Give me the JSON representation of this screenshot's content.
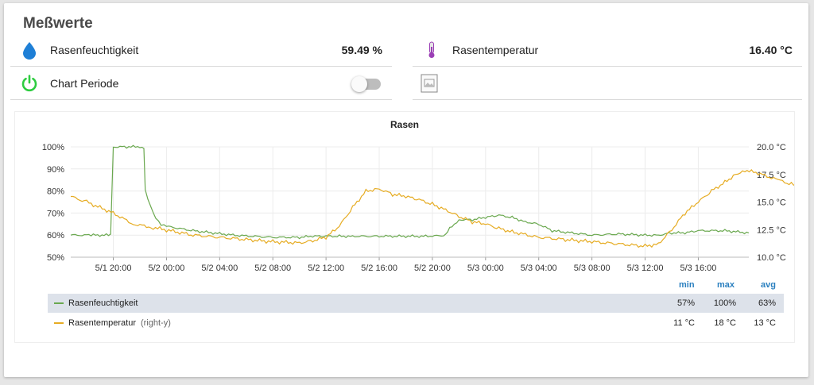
{
  "card": {
    "title": "Meßwerte"
  },
  "sensors": {
    "humidity": {
      "icon": "water-drop-icon",
      "label": "Rasenfeuchtigkeit",
      "value": "59.49 %"
    },
    "temperature": {
      "icon": "thermometer-icon",
      "label": "Rasentemperatur",
      "value": "16.40 °C"
    },
    "chart_period": {
      "icon": "power-icon",
      "label": "Chart Periode",
      "toggle_on": false
    },
    "image": {
      "icon": "image-file-icon"
    }
  },
  "colors": {
    "humidity": "#6aa84f",
    "temperature": "#e6ac23",
    "legend_header": "#2a7fbf",
    "power_icon": "#2ecc40",
    "drop_icon": "#1e7fd6",
    "thermo_icon": "#9b3fb5"
  },
  "chart_data": {
    "type": "line",
    "title": "Rasen",
    "x_ticks": [
      "5/1 20:00",
      "5/2 00:00",
      "5/2 04:00",
      "5/2 08:00",
      "5/2 12:00",
      "5/2 16:00",
      "5/2 20:00",
      "5/3 00:00",
      "5/3 04:00",
      "5/3 08:00",
      "5/3 12:00",
      "5/3 16:00"
    ],
    "x_range_hours": [
      -3.2,
      47.8
    ],
    "left_axis": {
      "ticks": [
        "100%",
        "90%",
        "80%",
        "70%",
        "60%",
        "50%"
      ],
      "range": [
        50,
        100
      ]
    },
    "right_axis": {
      "ticks": [
        "20.0 °C",
        "17.5 °C",
        "15.0 °C",
        "12.5 °C",
        "10.0 °C"
      ],
      "range": [
        10,
        20
      ]
    },
    "series": [
      {
        "name": "Rasenfeuchtigkeit",
        "axis": "left",
        "points": [
          [
            -3.2,
            60
          ],
          [
            -1.5,
            60
          ],
          [
            -0.2,
            60
          ],
          [
            0,
            100
          ],
          [
            1,
            100
          ],
          [
            2,
            100
          ],
          [
            2.3,
            99
          ],
          [
            2.4,
            80
          ],
          [
            2.8,
            73
          ],
          [
            3.2,
            68
          ],
          [
            3.6,
            65
          ],
          [
            4,
            64
          ],
          [
            6,
            62
          ],
          [
            9,
            60
          ],
          [
            12,
            59
          ],
          [
            14,
            59
          ],
          [
            15,
            59.5
          ],
          [
            16,
            59.5
          ],
          [
            17,
            59.5
          ],
          [
            18,
            59.5
          ],
          [
            20,
            59.5
          ],
          [
            23,
            59.5
          ],
          [
            24,
            59.5
          ],
          [
            25,
            60
          ],
          [
            25.3,
            63
          ],
          [
            26,
            67
          ],
          [
            27,
            67
          ],
          [
            28,
            68
          ],
          [
            29,
            69
          ],
          [
            30,
            68
          ],
          [
            31,
            66
          ],
          [
            32,
            65
          ],
          [
            33,
            62
          ],
          [
            36,
            60
          ],
          [
            38,
            60.5
          ],
          [
            40,
            60
          ],
          [
            41,
            60
          ],
          [
            42,
            61
          ],
          [
            43,
            61
          ],
          [
            44,
            62
          ],
          [
            46,
            62
          ],
          [
            47.8,
            61
          ]
        ]
      },
      {
        "name": "Rasentemperatur",
        "axis": "right",
        "points": [
          [
            -3.2,
            15.5
          ],
          [
            -2,
            15
          ],
          [
            0,
            14
          ],
          [
            1.5,
            13
          ],
          [
            3,
            12.7
          ],
          [
            6,
            12
          ],
          [
            9,
            11.7
          ],
          [
            12,
            11.4
          ],
          [
            14,
            11.3
          ],
          [
            15,
            11.5
          ],
          [
            16,
            11.8
          ],
          [
            17,
            12.8
          ],
          [
            18,
            14.5
          ],
          [
            19,
            16
          ],
          [
            20,
            16.2
          ],
          [
            21,
            15.7
          ],
          [
            22,
            15.5
          ],
          [
            23,
            15.2
          ],
          [
            24,
            14.8
          ],
          [
            25,
            14.3
          ],
          [
            26,
            13.7
          ],
          [
            27,
            13.2
          ],
          [
            28,
            13
          ],
          [
            29,
            12.6
          ],
          [
            30,
            12.3
          ],
          [
            32,
            11.8
          ],
          [
            34,
            11.6
          ],
          [
            36,
            11.4
          ],
          [
            38,
            11.2
          ],
          [
            40,
            11
          ],
          [
            41,
            11.2
          ],
          [
            42,
            12.5
          ],
          [
            43,
            14
          ],
          [
            44,
            15
          ],
          [
            45,
            16
          ],
          [
            46,
            16.8
          ],
          [
            46.8,
            17.5
          ],
          [
            47.5,
            17.9
          ],
          [
            48.5,
            17.6
          ],
          [
            50,
            17
          ],
          [
            51,
            16.6
          ],
          [
            52,
            16.4
          ]
        ]
      }
    ],
    "legend": {
      "headers": [
        "min",
        "max",
        "avg"
      ],
      "rows": [
        {
          "name": "Rasenfeuchtigkeit",
          "axis_note": "",
          "min": "57%",
          "max": "100%",
          "avg": "63%"
        },
        {
          "name": "Rasentemperatur",
          "axis_note": "(right-y)",
          "min": "11 °C",
          "max": "18 °C",
          "avg": "13 °C"
        }
      ]
    }
  }
}
